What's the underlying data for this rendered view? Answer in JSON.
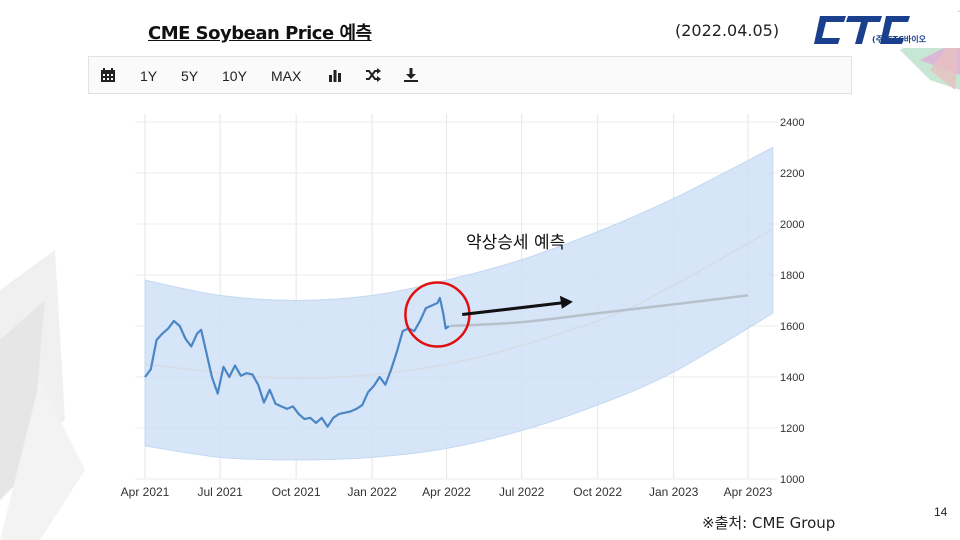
{
  "slide": {
    "title": "CME Soybean Price 예측",
    "date": "(2022.04.05)",
    "logo_text": "(주)CTC바이오",
    "source": "※출처: CME Group",
    "page_number": "14"
  },
  "toolbar": {
    "calendar_icon": "calendar-icon",
    "ranges": [
      "1Y",
      "5Y",
      "10Y",
      "MAX"
    ],
    "bar_chart_icon": "bar-chart-icon",
    "shuffle_icon": "shuffle-icon",
    "download_icon": "download-icon"
  },
  "annotation": {
    "text": "약상승세 예측"
  },
  "colors": {
    "line": "#4a86c5",
    "band": "#cfe1f7",
    "forecast": "#b7c1cc",
    "circle": "#e01010",
    "arrow": "#111111"
  },
  "chart_data": {
    "type": "line",
    "x_tick_labels": [
      "Apr 2021",
      "Jul 2021",
      "Oct 2021",
      "Jan 2022",
      "Apr 2022",
      "Jul 2022",
      "Oct 2022",
      "Jan 2023",
      "Apr 2023"
    ],
    "ylim": [
      1000,
      2400
    ],
    "y_ticks": [
      1000,
      1200,
      1400,
      1600,
      1800,
      2000,
      2200,
      2400
    ],
    "y_axis_position": "right",
    "grid": true,
    "series": [
      {
        "role": "historical",
        "points": [
          [
            "2021-04-01",
            1400
          ],
          [
            "2021-04-08",
            1430
          ],
          [
            "2021-04-15",
            1545
          ],
          [
            "2021-04-22",
            1570
          ],
          [
            "2021-04-29",
            1590
          ],
          [
            "2021-05-06",
            1620
          ],
          [
            "2021-05-13",
            1600
          ],
          [
            "2021-05-20",
            1550
          ],
          [
            "2021-05-27",
            1520
          ],
          [
            "2021-06-03",
            1570
          ],
          [
            "2021-06-08",
            1585
          ],
          [
            "2021-06-14",
            1500
          ],
          [
            "2021-06-21",
            1400
          ],
          [
            "2021-06-28",
            1335
          ],
          [
            "2021-07-05",
            1440
          ],
          [
            "2021-07-12",
            1400
          ],
          [
            "2021-07-19",
            1445
          ],
          [
            "2021-07-26",
            1405
          ],
          [
            "2021-08-02",
            1415
          ],
          [
            "2021-08-09",
            1410
          ],
          [
            "2021-08-16",
            1370
          ],
          [
            "2021-08-23",
            1300
          ],
          [
            "2021-08-30",
            1350
          ],
          [
            "2021-09-06",
            1295
          ],
          [
            "2021-09-13",
            1285
          ],
          [
            "2021-09-20",
            1275
          ],
          [
            "2021-09-27",
            1285
          ],
          [
            "2021-10-04",
            1255
          ],
          [
            "2021-10-11",
            1235
          ],
          [
            "2021-10-18",
            1240
          ],
          [
            "2021-10-25",
            1220
          ],
          [
            "2021-11-01",
            1240
          ],
          [
            "2021-11-08",
            1205
          ],
          [
            "2021-11-15",
            1240
          ],
          [
            "2021-11-22",
            1255
          ],
          [
            "2021-11-29",
            1260
          ],
          [
            "2021-12-06",
            1265
          ],
          [
            "2021-12-13",
            1275
          ],
          [
            "2021-12-20",
            1290
          ],
          [
            "2021-12-27",
            1340
          ],
          [
            "2022-01-03",
            1365
          ],
          [
            "2022-01-10",
            1400
          ],
          [
            "2022-01-17",
            1370
          ],
          [
            "2022-01-24",
            1430
          ],
          [
            "2022-01-31",
            1500
          ],
          [
            "2022-02-07",
            1580
          ],
          [
            "2022-02-14",
            1590
          ],
          [
            "2022-02-21",
            1580
          ],
          [
            "2022-02-28",
            1620
          ],
          [
            "2022-03-07",
            1670
          ],
          [
            "2022-03-14",
            1680
          ],
          [
            "2022-03-21",
            1690
          ],
          [
            "2022-03-24",
            1710
          ],
          [
            "2022-03-28",
            1650
          ],
          [
            "2022-03-31",
            1590
          ],
          [
            "2022-04-04",
            1600
          ]
        ]
      },
      {
        "role": "forecast",
        "points": [
          [
            "2022-04-05",
            1600
          ],
          [
            "2022-07-01",
            1615
          ],
          [
            "2022-10-01",
            1650
          ],
          [
            "2023-01-01",
            1685
          ],
          [
            "2023-04-01",
            1720
          ]
        ]
      },
      {
        "role": "band_upper",
        "points": [
          [
            "2021-04-01",
            1780
          ],
          [
            "2021-07-01",
            1720
          ],
          [
            "2021-10-01",
            1700
          ],
          [
            "2022-01-01",
            1720
          ],
          [
            "2022-04-01",
            1780
          ],
          [
            "2022-07-01",
            1860
          ],
          [
            "2022-10-01",
            1970
          ],
          [
            "2023-01-01",
            2100
          ],
          [
            "2023-05-01",
            2300
          ]
        ]
      },
      {
        "role": "band_lower",
        "points": [
          [
            "2021-04-01",
            1130
          ],
          [
            "2021-07-01",
            1085
          ],
          [
            "2021-10-01",
            1075
          ],
          [
            "2022-01-01",
            1085
          ],
          [
            "2022-04-01",
            1120
          ],
          [
            "2022-07-01",
            1190
          ],
          [
            "2022-10-01",
            1290
          ],
          [
            "2023-01-01",
            1420
          ],
          [
            "2023-05-01",
            1650
          ]
        ]
      },
      {
        "role": "band_mid",
        "points": [
          [
            "2021-04-01",
            1450
          ],
          [
            "2021-10-01",
            1395
          ],
          [
            "2022-04-01",
            1450
          ],
          [
            "2022-10-01",
            1620
          ],
          [
            "2023-01-01",
            1760
          ],
          [
            "2023-05-01",
            1980
          ]
        ]
      }
    ]
  }
}
